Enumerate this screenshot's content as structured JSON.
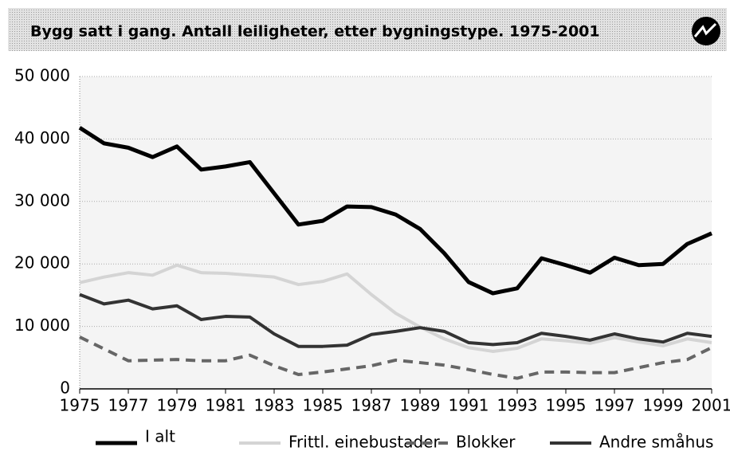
{
  "chart_data": {
    "type": "line",
    "title": "Bygg satt i gang.  Antall leiligheter, etter bygningstype. 1975-2001",
    "x": [
      1975,
      1976,
      1977,
      1978,
      1979,
      1980,
      1981,
      1982,
      1983,
      1984,
      1985,
      1986,
      1987,
      1988,
      1989,
      1990,
      1991,
      1992,
      1993,
      1994,
      1995,
      1996,
      1997,
      1998,
      1999,
      2000,
      2001
    ],
    "series": [
      {
        "name": "I alt",
        "color": "#000000",
        "width": 5,
        "dashed": false,
        "values": [
          41800,
          39300,
          38600,
          37100,
          38800,
          35100,
          35600,
          36300,
          31300,
          26300,
          26900,
          29200,
          29100,
          27900,
          25600,
          21700,
          17100,
          15300,
          16100,
          20900,
          19800,
          18600,
          21000,
          19800,
          20000,
          23200,
          24900
        ]
      },
      {
        "name": "Frittl. einebustader",
        "color": "#d4d4d4",
        "width": 4,
        "dashed": false,
        "values": [
          17000,
          17900,
          18600,
          18200,
          19800,
          18600,
          18500,
          18200,
          17900,
          16700,
          17200,
          18400,
          15100,
          12100,
          9900,
          8000,
          6600,
          6000,
          6500,
          8000,
          7700,
          7300,
          8200,
          7500,
          6900,
          8000,
          7400
        ]
      },
      {
        "name": "Blokker",
        "color": "#666666",
        "width": 4,
        "dashed": true,
        "values": [
          8300,
          6400,
          4500,
          4600,
          4700,
          4500,
          4500,
          5400,
          3700,
          2300,
          2700,
          3200,
          3700,
          4600,
          4200,
          3800,
          3100,
          2300,
          1700,
          2700,
          2700,
          2600,
          2600,
          3400,
          4200,
          4700,
          6600
        ]
      },
      {
        "name": "Andre småhus",
        "color": "#333333",
        "width": 4,
        "dashed": false,
        "values": [
          15100,
          13600,
          14200,
          12800,
          13300,
          11100,
          11600,
          11500,
          8800,
          6800,
          6800,
          7000,
          8700,
          9200,
          9800,
          9200,
          7400,
          7100,
          7400,
          8900,
          8400,
          7800,
          8800,
          8000,
          7500,
          8900,
          8400
        ]
      }
    ],
    "xlim": [
      1975,
      2001
    ],
    "xticks": [
      1975,
      1977,
      1979,
      1981,
      1983,
      1985,
      1987,
      1989,
      1991,
      1993,
      1995,
      1997,
      1999,
      2001
    ],
    "ylim": [
      0,
      50000
    ],
    "yticks": [
      0,
      {
        "value": 10000,
        "label": "10 000"
      },
      {
        "value": 20000,
        "label": "20 000"
      },
      {
        "value": 30000,
        "label": "30 000"
      },
      {
        "value": 40000,
        "label": "40 000"
      },
      {
        "value": 50000,
        "label": "50 000"
      }
    ],
    "grid": true
  }
}
